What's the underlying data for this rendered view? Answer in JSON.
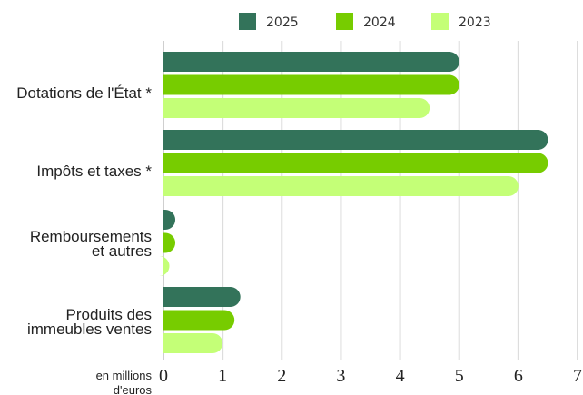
{
  "chart_data": {
    "type": "bar",
    "orientation": "horizontal",
    "categories": [
      [
        "Dotations de l'État *"
      ],
      [
        "Impôts et taxes *"
      ],
      [
        "Remboursements",
        "et autres"
      ],
      [
        "Produits des",
        "immeubles ventes"
      ]
    ],
    "series": [
      {
        "name": "2025",
        "color": "#33735a",
        "values": [
          5.0,
          6.5,
          0.2,
          1.3
        ]
      },
      {
        "name": "2024",
        "color": "#77cc00",
        "values": [
          5.0,
          6.5,
          0.2,
          1.2
        ]
      },
      {
        "name": "2023",
        "color": "#c4ff77",
        "values": [
          4.5,
          6.0,
          0.1,
          1.0
        ]
      }
    ],
    "xlim": [
      0,
      7
    ],
    "xticks": [
      "0",
      "1",
      "2",
      "3",
      "4",
      "5",
      "6",
      "7"
    ],
    "unit_label": [
      "en millions",
      "d'euros"
    ],
    "grid": true,
    "legend_position": "top"
  }
}
